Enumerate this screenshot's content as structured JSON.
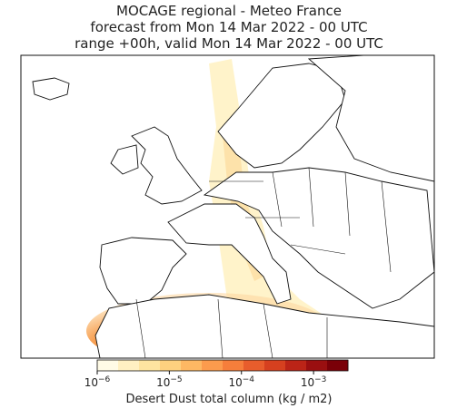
{
  "chart_data": {
    "type": "map",
    "title": [
      "MOCAGE regional - Meteo France",
      "forecast from Mon 14 Mar 2022 - 00 UTC",
      "range +00h, valid Mon 14 Mar 2022 - 00 UTC"
    ],
    "colorbar": {
      "label": "Desert Dust total column (kg / m2)",
      "scale": "log",
      "clim": [
        1e-06,
        0.003
      ],
      "colors": [
        "#fffbe6",
        "#fff0c2",
        "#fee4a0",
        "#fdd17f",
        "#fdb863",
        "#fc9b4d",
        "#f67e3b",
        "#e85d2c",
        "#d6401f",
        "#bb2417",
        "#9a0f10",
        "#7a0008"
      ],
      "ticks": [
        {
          "value": 1e-06,
          "base": "10",
          "exponent": "−6"
        },
        {
          "value": 1e-05,
          "base": "10",
          "exponent": "−5"
        },
        {
          "value": 0.0001,
          "base": "10",
          "exponent": "−4"
        },
        {
          "value": 0.001,
          "base": "10",
          "exponent": "−3"
        }
      ]
    }
  }
}
